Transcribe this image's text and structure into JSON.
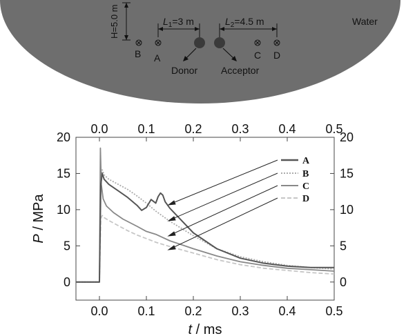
{
  "diagram": {
    "water_label": "Water",
    "depth_label": "H=5.0 m",
    "l1_label_var": "L",
    "l1_label_sub": "1",
    "l1_label_val": "=3 m",
    "l2_label_var": "L",
    "l2_label_sub": "2",
    "l2_label_val": "=4.5 m",
    "gauges": [
      "B",
      "A",
      "C",
      "D"
    ],
    "donor_label": "Donor",
    "acceptor_label": "Acceptor",
    "colors": {
      "water": "#6e6e6e",
      "charge": "#3a3a3a"
    }
  },
  "chart_data": {
    "type": "line",
    "xlabel_var": "t",
    "xlabel_unit": " / ms",
    "ylabel_var": "P",
    "ylabel_unit": " / MPa",
    "xlim": [
      -0.05,
      0.5
    ],
    "ylim": [
      -2.5,
      20
    ],
    "xticks": [
      "0.0",
      "0.1",
      "0.2",
      "0.3",
      "0.4",
      "0.5"
    ],
    "xtick_values": [
      0.0,
      0.1,
      0.2,
      0.3,
      0.4,
      0.5
    ],
    "yticks": [
      "0",
      "5",
      "10",
      "15",
      "20"
    ],
    "ytick_values": [
      0,
      5,
      10,
      15,
      20
    ],
    "grid": false,
    "legend_position": "top-right",
    "series": [
      {
        "name": "A",
        "color": "#555555",
        "dash": "",
        "x": [
          -0.05,
          0.0,
          0.003,
          0.006,
          0.01,
          0.02,
          0.04,
          0.06,
          0.08,
          0.09,
          0.1,
          0.11,
          0.12,
          0.125,
          0.13,
          0.135,
          0.14,
          0.15,
          0.2,
          0.25,
          0.3,
          0.35,
          0.4,
          0.45,
          0.5
        ],
        "y": [
          0,
          0,
          13.5,
          15.0,
          14.2,
          13.5,
          12.6,
          11.7,
          10.6,
          9.9,
          10.3,
          11.4,
          10.9,
          11.8,
          12.3,
          12.0,
          11.1,
          10.2,
          6.8,
          4.6,
          3.3,
          2.6,
          2.2,
          2.0,
          2.0
        ]
      },
      {
        "name": "B",
        "color": "#aaaaaa",
        "dash": "2,2",
        "x": [
          -0.05,
          0.0,
          0.003,
          0.006,
          0.01,
          0.02,
          0.04,
          0.06,
          0.08,
          0.1,
          0.12,
          0.15,
          0.2,
          0.25,
          0.3,
          0.35,
          0.4,
          0.45,
          0.5
        ],
        "y": [
          0,
          0,
          14.5,
          15.5,
          14.8,
          14.2,
          13.5,
          12.8,
          11.9,
          10.9,
          9.8,
          8.4,
          6.4,
          4.6,
          3.5,
          2.8,
          2.3,
          2.0,
          1.8
        ]
      },
      {
        "name": "C",
        "color": "#888888",
        "dash": "",
        "x": [
          -0.05,
          0.0,
          0.002,
          0.004,
          0.008,
          0.015,
          0.03,
          0.05,
          0.08,
          0.1,
          0.12,
          0.15,
          0.2,
          0.25,
          0.3,
          0.35,
          0.4,
          0.45,
          0.5
        ],
        "y": [
          0,
          0,
          18.5,
          13.5,
          11.5,
          10.5,
          9.6,
          8.7,
          7.7,
          7.0,
          6.6,
          5.7,
          4.6,
          3.6,
          2.8,
          2.3,
          1.9,
          1.7,
          1.5
        ]
      },
      {
        "name": "D",
        "color": "#c6c6c6",
        "dash": "6,3",
        "x": [
          -0.05,
          0.0,
          0.003,
          0.006,
          0.01,
          0.02,
          0.04,
          0.06,
          0.08,
          0.1,
          0.12,
          0.15,
          0.2,
          0.25,
          0.3,
          0.35,
          0.4,
          0.45,
          0.5
        ],
        "y": [
          0,
          0,
          8.8,
          9.2,
          8.9,
          8.5,
          7.8,
          7.1,
          6.5,
          6.0,
          5.5,
          4.9,
          4.0,
          3.1,
          2.4,
          1.9,
          1.6,
          1.3,
          1.1
        ]
      }
    ],
    "legend": [
      "A",
      "B",
      "C",
      "D"
    ]
  }
}
